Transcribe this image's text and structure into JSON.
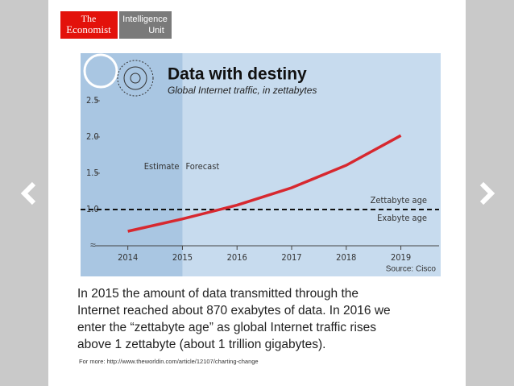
{
  "logo": {
    "brand": [
      "The",
      "Economist"
    ],
    "unit": [
      "Intelligence",
      "Unit"
    ]
  },
  "chart_data": {
    "type": "line",
    "title": "Data with destiny",
    "subtitle": "Global Internet traffic, in zettabytes",
    "x": [
      2014,
      2015,
      2016,
      2017,
      2018,
      2019
    ],
    "series": [
      {
        "name": "Global Internet traffic",
        "color": "#d7282f",
        "values": [
          0.7,
          0.87,
          1.06,
          1.3,
          1.61,
          2.02
        ]
      }
    ],
    "xlim": [
      2013.4,
      2019.7
    ],
    "xticks": [
      2014,
      2015,
      2016,
      2017,
      2018,
      2019
    ],
    "ylim": [
      0.5,
      2.5
    ],
    "yticks": [
      {
        "value": 1,
        "label": "1.0"
      },
      {
        "value": 1.5,
        "label": "1.5"
      },
      {
        "value": 2,
        "label": "2.0"
      },
      {
        "value": 2.5,
        "label": "2.5"
      }
    ],
    "forecast_start": 2015,
    "threshold": 1,
    "annotations": [
      "Estimate",
      "Forecast",
      "Zettabyte age",
      "Exabyte age"
    ],
    "source": "Source: Cisco"
  },
  "caption": [
    "In 2015 the amount of data transmitted through the",
    "Internet reached about 870 exabytes of data. In 2016 we",
    "enter the “zettabyte age” as global Internet traffic rises",
    "above 1 zettabyte (about 1 trillion gigabytes)."
  ],
  "link": "For more: http://www.theworldin.com/article/12107/charting-change"
}
